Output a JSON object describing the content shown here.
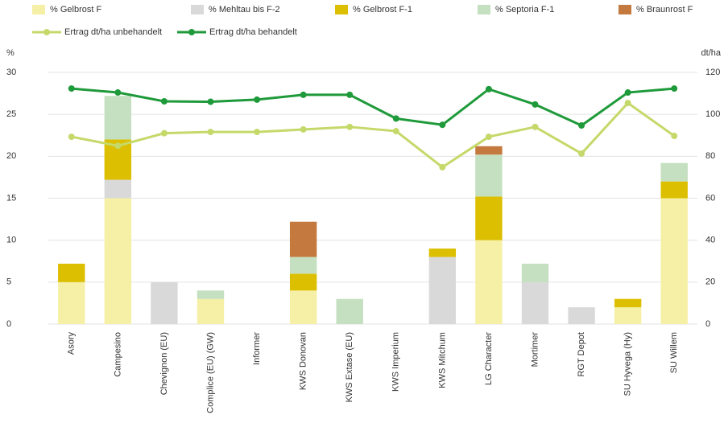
{
  "chart_data": {
    "type": "bar",
    "y_label": "%",
    "y2_label": "dt/ha",
    "categories": [
      "Asory",
      "Campesino",
      "Chevignon (EU)",
      "Complice (EU) (GW)",
      "Informer",
      "KWS Donovan",
      "KWS Extase (EU)",
      "KWS Imperium",
      "KWS Mitchum",
      "LG Character",
      "Mortimer",
      "RGT Depot",
      "SU Hyvega (Hy)",
      "SU Willem"
    ],
    "series": [
      {
        "name": "% Gelbrost F",
        "color": "#f5f0a6",
        "values": [
          5,
          15,
          0,
          3,
          0,
          4,
          0,
          0,
          0,
          10,
          0,
          0,
          2,
          15
        ]
      },
      {
        "name": "% Mehltau bis F-2",
        "color": "#d9d9d9",
        "values": [
          0,
          2.2,
          5,
          0,
          0,
          0,
          0,
          0,
          8,
          0,
          5,
          2,
          0,
          0
        ]
      },
      {
        "name": "% Gelbrost F-1",
        "color": "#dcbf00",
        "values": [
          2.2,
          4.8,
          0,
          0,
          0,
          2,
          0,
          0,
          1,
          5.2,
          0,
          0,
          1,
          2
        ]
      },
      {
        "name": "% Septoria F-1",
        "color": "#c5e0c0",
        "values": [
          0,
          5.2,
          0,
          1,
          0,
          2,
          3,
          0,
          0,
          5,
          2.2,
          0,
          0,
          2.2
        ]
      },
      {
        "name": "% Braunrost F",
        "color": "#c47a3f",
        "values": [
          0,
          0,
          0,
          0,
          0,
          4.2,
          0,
          0,
          0,
          1,
          0,
          0,
          0,
          0
        ]
      },
      {
        "name": "Ertrag dt/ha unbehandelt",
        "color": "#c5d96a",
        "type": "line",
        "axis": "y2",
        "values": [
          89.3,
          85,
          91,
          91.6,
          91.6,
          92.8,
          94,
          92,
          74.8,
          89.3,
          94,
          81.3,
          105.4,
          89.7
        ]
      },
      {
        "name": "Ertrag dt/ha behandelt",
        "color": "#1f9a3a",
        "type": "line",
        "axis": "y2",
        "values": [
          112.3,
          110.4,
          106.2,
          106,
          107,
          109.3,
          109.3,
          98,
          95,
          112,
          104.7,
          94.7,
          110.4,
          112.3
        ]
      }
    ],
    "ylim": [
      0,
      30
    ],
    "yticks": [
      0,
      5,
      10,
      15,
      20,
      25,
      30
    ],
    "y2lim": [
      0,
      120
    ],
    "y2ticks": [
      0,
      20,
      40,
      60,
      80,
      100,
      120
    ],
    "grid": true,
    "legend": "top"
  }
}
